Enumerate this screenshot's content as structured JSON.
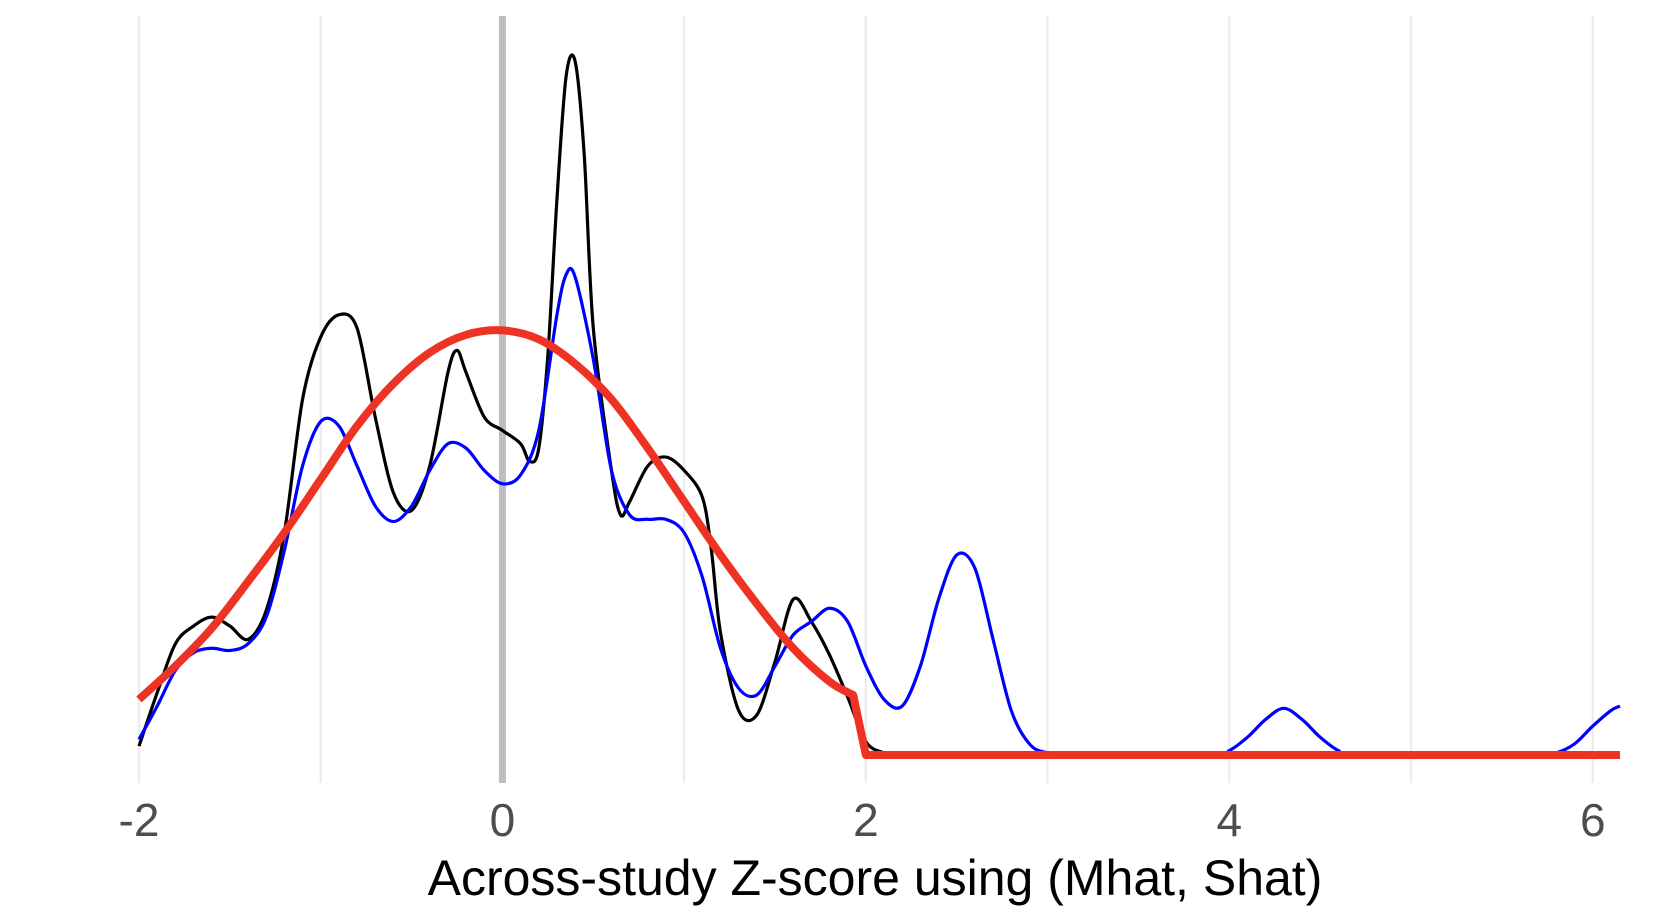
{
  "chart_data": {
    "type": "line",
    "title": "",
    "xlabel": "Across-study Z-score using (Mhat, Shat)",
    "ylabel": "",
    "xlim": [
      -2,
      6.15
    ],
    "ylim": [
      0,
      3.18
    ],
    "x_ticks": [
      -2,
      0,
      2,
      4,
      6
    ],
    "x_tick_labels": [
      "-2",
      "0",
      "2",
      "4",
      "6"
    ],
    "minor_grid_x": [
      -1,
      1,
      3,
      5
    ],
    "reference_line_x": 0,
    "grid": "vertical only",
    "legend": "none",
    "colors": {
      "black_series": "#000000",
      "blue_series": "#0000ff",
      "red_series": "#ee3324",
      "grid": "#ebebeb",
      "reference_line": "#bebebe",
      "tick_label": "#4d4d4d"
    },
    "series": [
      {
        "color": "#000000",
        "points": [
          [
            -2.0,
            0.04
          ],
          [
            -1.9,
            0.28
          ],
          [
            -1.8,
            0.5
          ],
          [
            -1.7,
            0.58
          ],
          [
            -1.6,
            0.62
          ],
          [
            -1.5,
            0.58
          ],
          [
            -1.4,
            0.52
          ],
          [
            -1.3,
            0.65
          ],
          [
            -1.2,
            1.0
          ],
          [
            -1.1,
            1.6
          ],
          [
            -1.0,
            1.88
          ],
          [
            -0.9,
            1.98
          ],
          [
            -0.8,
            1.92
          ],
          [
            -0.7,
            1.52
          ],
          [
            -0.6,
            1.18
          ],
          [
            -0.5,
            1.1
          ],
          [
            -0.4,
            1.3
          ],
          [
            -0.3,
            1.72
          ],
          [
            -0.25,
            1.82
          ],
          [
            -0.2,
            1.72
          ],
          [
            -0.1,
            1.52
          ],
          [
            0.0,
            1.46
          ],
          [
            0.1,
            1.4
          ],
          [
            0.15,
            1.32
          ],
          [
            0.2,
            1.38
          ],
          [
            0.25,
            1.8
          ],
          [
            0.3,
            2.5
          ],
          [
            0.35,
            3.05
          ],
          [
            0.4,
            3.12
          ],
          [
            0.45,
            2.7
          ],
          [
            0.5,
            1.92
          ],
          [
            0.6,
            1.28
          ],
          [
            0.65,
            1.08
          ],
          [
            0.7,
            1.14
          ],
          [
            0.8,
            1.3
          ],
          [
            0.9,
            1.34
          ],
          [
            1.0,
            1.28
          ],
          [
            1.1,
            1.16
          ],
          [
            1.15,
            0.92
          ],
          [
            1.2,
            0.55
          ],
          [
            1.3,
            0.2
          ],
          [
            1.4,
            0.18
          ],
          [
            1.5,
            0.42
          ],
          [
            1.6,
            0.7
          ],
          [
            1.7,
            0.6
          ],
          [
            1.8,
            0.45
          ],
          [
            1.9,
            0.26
          ],
          [
            2.0,
            0.06
          ],
          [
            2.1,
            0.01
          ],
          [
            2.2,
            0.0
          ],
          [
            3.0,
            0.0
          ],
          [
            4.0,
            0.0
          ],
          [
            5.0,
            0.0
          ],
          [
            6.15,
            0.0
          ]
        ]
      },
      {
        "color": "#0000ff",
        "points": [
          [
            -2.0,
            0.07
          ],
          [
            -1.9,
            0.22
          ],
          [
            -1.8,
            0.38
          ],
          [
            -1.7,
            0.46
          ],
          [
            -1.6,
            0.48
          ],
          [
            -1.5,
            0.47
          ],
          [
            -1.4,
            0.5
          ],
          [
            -1.3,
            0.62
          ],
          [
            -1.2,
            0.92
          ],
          [
            -1.1,
            1.3
          ],
          [
            -1.0,
            1.5
          ],
          [
            -0.9,
            1.48
          ],
          [
            -0.8,
            1.3
          ],
          [
            -0.7,
            1.12
          ],
          [
            -0.6,
            1.05
          ],
          [
            -0.5,
            1.12
          ],
          [
            -0.4,
            1.28
          ],
          [
            -0.3,
            1.4
          ],
          [
            -0.2,
            1.38
          ],
          [
            -0.1,
            1.28
          ],
          [
            0.0,
            1.22
          ],
          [
            0.1,
            1.26
          ],
          [
            0.2,
            1.46
          ],
          [
            0.3,
            1.98
          ],
          [
            0.35,
            2.16
          ],
          [
            0.4,
            2.15
          ],
          [
            0.5,
            1.78
          ],
          [
            0.6,
            1.28
          ],
          [
            0.7,
            1.08
          ],
          [
            0.8,
            1.06
          ],
          [
            0.9,
            1.06
          ],
          [
            1.0,
            1.0
          ],
          [
            1.1,
            0.8
          ],
          [
            1.2,
            0.48
          ],
          [
            1.3,
            0.3
          ],
          [
            1.4,
            0.27
          ],
          [
            1.5,
            0.4
          ],
          [
            1.6,
            0.54
          ],
          [
            1.7,
            0.6
          ],
          [
            1.8,
            0.66
          ],
          [
            1.9,
            0.6
          ],
          [
            2.0,
            0.4
          ],
          [
            2.1,
            0.25
          ],
          [
            2.2,
            0.22
          ],
          [
            2.3,
            0.4
          ],
          [
            2.4,
            0.7
          ],
          [
            2.5,
            0.9
          ],
          [
            2.6,
            0.84
          ],
          [
            2.7,
            0.52
          ],
          [
            2.8,
            0.2
          ],
          [
            2.9,
            0.05
          ],
          [
            3.0,
            0.01
          ],
          [
            3.2,
            0.0
          ],
          [
            3.9,
            0.0
          ],
          [
            4.0,
            0.02
          ],
          [
            4.1,
            0.08
          ],
          [
            4.2,
            0.16
          ],
          [
            4.3,
            0.21
          ],
          [
            4.4,
            0.16
          ],
          [
            4.5,
            0.08
          ],
          [
            4.6,
            0.02
          ],
          [
            4.7,
            0.0
          ],
          [
            5.7,
            0.0
          ],
          [
            5.8,
            0.01
          ],
          [
            5.9,
            0.05
          ],
          [
            6.0,
            0.13
          ],
          [
            6.1,
            0.2
          ],
          [
            6.15,
            0.22
          ]
        ]
      },
      {
        "color": "#ee3324",
        "points": [
          [
            -2.0,
            0.25
          ],
          [
            -1.8,
            0.4
          ],
          [
            -1.6,
            0.57
          ],
          [
            -1.4,
            0.78
          ],
          [
            -1.2,
            1.0
          ],
          [
            -1.0,
            1.24
          ],
          [
            -0.8,
            1.48
          ],
          [
            -0.6,
            1.67
          ],
          [
            -0.4,
            1.81
          ],
          [
            -0.2,
            1.89
          ],
          [
            0.0,
            1.91
          ],
          [
            0.2,
            1.87
          ],
          [
            0.4,
            1.76
          ],
          [
            0.6,
            1.6
          ],
          [
            0.8,
            1.38
          ],
          [
            1.0,
            1.14
          ],
          [
            1.2,
            0.9
          ],
          [
            1.4,
            0.68
          ],
          [
            1.6,
            0.48
          ],
          [
            1.8,
            0.33
          ],
          [
            1.93,
            0.27
          ],
          [
            2.0,
            0.0
          ],
          [
            3.0,
            0.0
          ],
          [
            4.0,
            0.0
          ],
          [
            5.0,
            0.0
          ],
          [
            6.15,
            0.0
          ]
        ]
      }
    ]
  }
}
